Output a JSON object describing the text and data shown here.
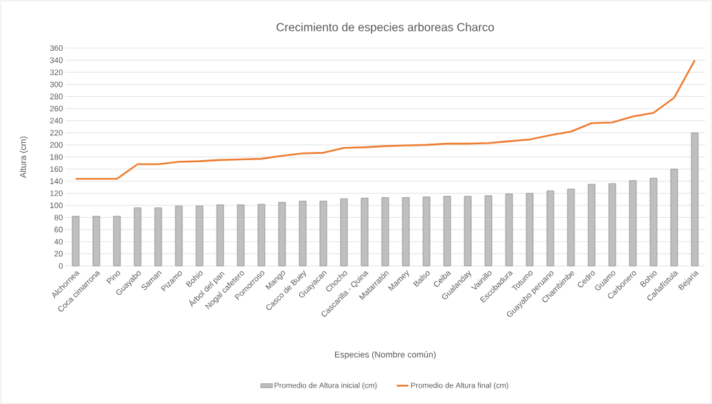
{
  "chart_data": {
    "type": "bar",
    "title": "Crecimiento de especies arboreas Charco",
    "xlabel": "Especies (Nombre común)",
    "ylabel": "Altura (cm)",
    "categories": [
      "Alchornea",
      "Coca cimarrona",
      "Pino",
      "Guayabo",
      "Saman",
      "Pizamo",
      "Bohio",
      "Árbol del pan",
      "Nogal cafetero",
      "Pomorroso",
      "Mango",
      "Casco de Buey",
      "Guayacan",
      "Chocho",
      "Cascarilla - Quina",
      "Matarratón",
      "Mamey",
      "Balso",
      "Ceiba",
      "Gualanday",
      "Vainillo",
      "Escobadura",
      "Totumo",
      "Guayabo peruano",
      "Chambimbe",
      "Cedro",
      "Guamo",
      "Carbonero",
      "Bohio",
      "Cañafístula",
      "Bejaria"
    ],
    "series": [
      {
        "name": "Promedio de Altura inicial (cm)",
        "color": "#bfbfbf",
        "values": [
          82,
          82,
          82,
          96,
          96,
          99,
          99,
          101,
          101,
          102,
          105,
          107,
          107,
          111,
          112,
          113,
          113,
          114,
          115,
          115,
          116,
          119,
          120,
          124,
          127,
          135,
          136,
          141,
          145,
          160,
          220
        ]
      },
      {
        "name": "Promedio de Altura final (cm)",
        "type": "line",
        "color": "#ed7d31",
        "values": [
          144,
          144,
          144,
          168,
          168,
          172,
          173,
          175,
          176,
          177,
          182,
          186,
          187,
          195,
          196,
          198,
          199,
          200,
          202,
          202,
          203,
          206,
          209,
          216,
          222,
          236,
          237,
          247,
          253,
          278,
          340
        ]
      }
    ],
    "ylim": [
      0,
      360
    ],
    "yticks": [
      0,
      20,
      40,
      60,
      80,
      100,
      120,
      140,
      160,
      180,
      200,
      220,
      240,
      260,
      280,
      300,
      320,
      340,
      360
    ],
    "grid": "y",
    "legend": "bottom",
    "marker": "none",
    "line_style": "solid"
  }
}
